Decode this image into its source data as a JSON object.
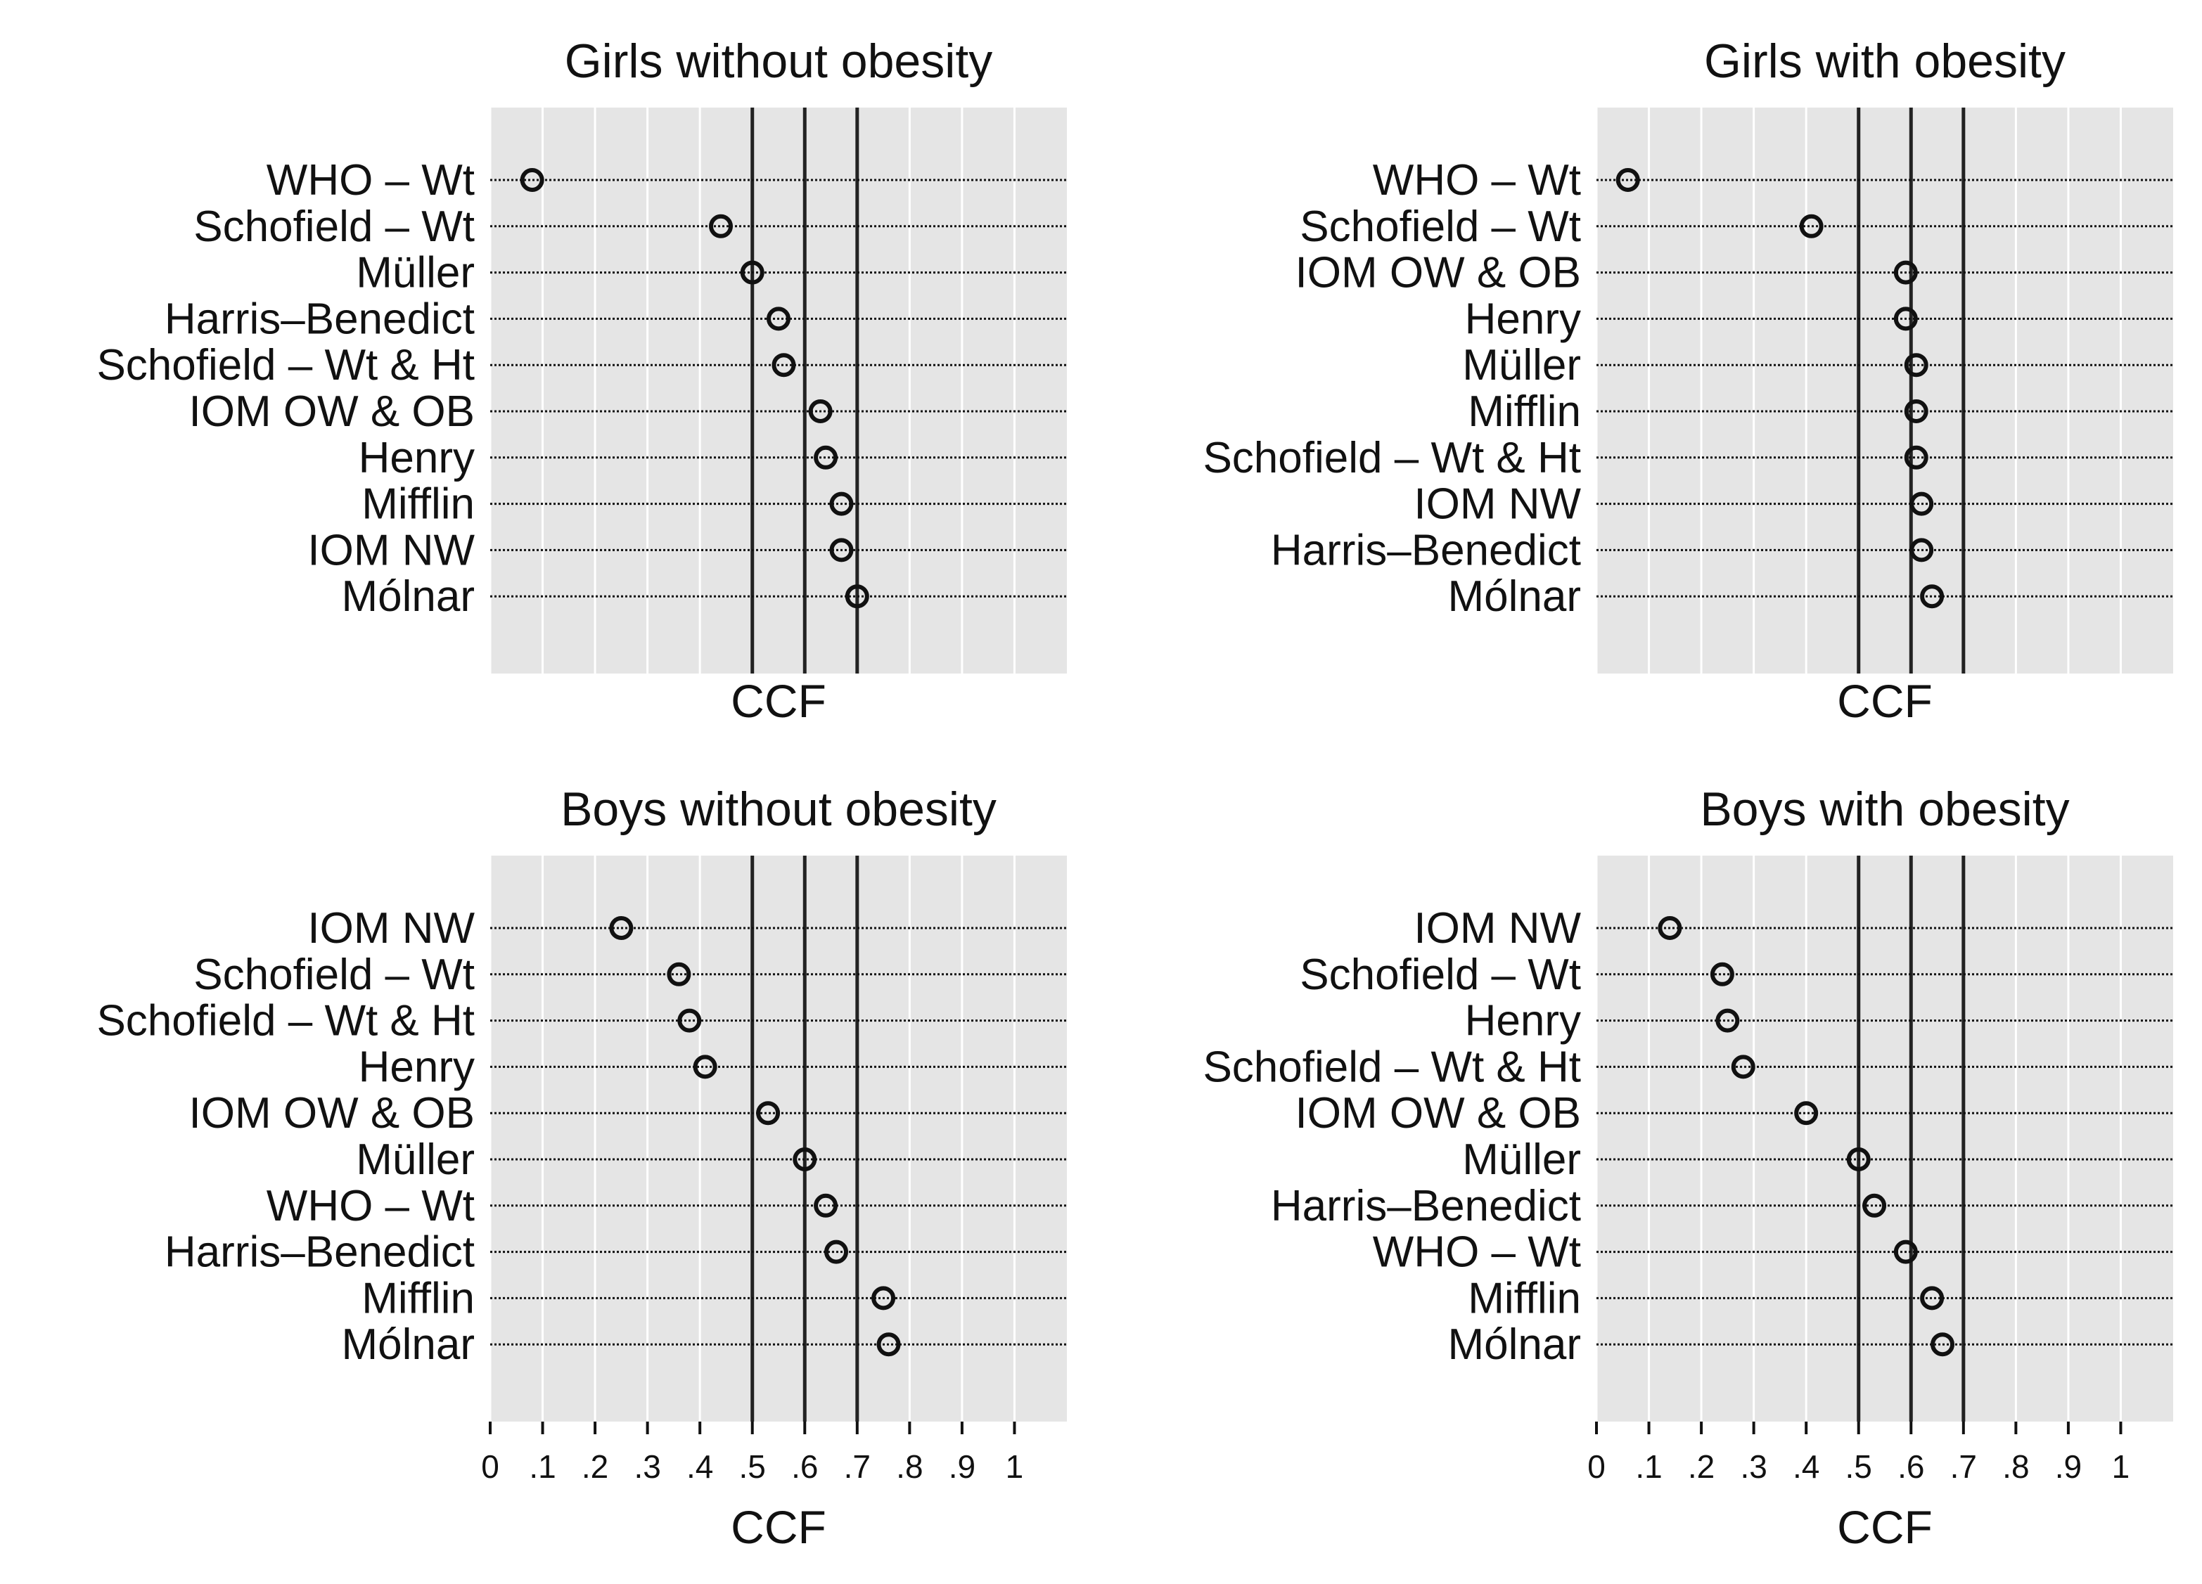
{
  "chart_data": [
    {
      "type": "scatter",
      "title": "Girls without obesity",
      "xlabel": "CCF",
      "xlim": [
        0,
        1.1
      ],
      "show_x_ticks": false,
      "reference_lines": [
        0.5,
        0.6,
        0.7
      ],
      "categories": [
        "WHO – Wt",
        "Schofield – Wt",
        "Müller",
        "Harris–Benedict",
        "Schofield – Wt & Ht",
        "IOM OW & OB",
        "Henry",
        "Mifflin",
        "IOM NW",
        "Mólnar"
      ],
      "values": [
        0.08,
        0.44,
        0.5,
        0.55,
        0.56,
        0.63,
        0.64,
        0.67,
        0.67,
        0.7
      ]
    },
    {
      "type": "scatter",
      "title": "Girls with obesity",
      "xlabel": "CCF",
      "xlim": [
        0,
        1.1
      ],
      "show_x_ticks": false,
      "reference_lines": [
        0.5,
        0.6,
        0.7
      ],
      "categories": [
        "WHO – Wt",
        "Schofield – Wt",
        "IOM OW & OB",
        "Henry",
        "Müller",
        "Mifflin",
        "Schofield – Wt & Ht",
        "IOM NW",
        "Harris–Benedict",
        "Mólnar"
      ],
      "values": [
        0.06,
        0.41,
        0.59,
        0.59,
        0.61,
        0.61,
        0.61,
        0.62,
        0.62,
        0.64
      ]
    },
    {
      "type": "scatter",
      "title": "Boys without obesity",
      "xlabel": "CCF",
      "xlim": [
        0,
        1.1
      ],
      "show_x_ticks": true,
      "reference_lines": [
        0.5,
        0.6,
        0.7
      ],
      "categories": [
        "IOM NW",
        "Schofield – Wt",
        "Schofield – Wt & Ht",
        "Henry",
        "IOM OW & OB",
        "Müller",
        "WHO – Wt",
        "Harris–Benedict",
        "Mifflin",
        "Mólnar"
      ],
      "values": [
        0.25,
        0.36,
        0.38,
        0.41,
        0.53,
        0.6,
        0.64,
        0.66,
        0.75,
        0.76
      ]
    },
    {
      "type": "scatter",
      "title": "Boys with obesity",
      "xlabel": "CCF",
      "xlim": [
        0,
        1.1
      ],
      "show_x_ticks": true,
      "reference_lines": [
        0.5,
        0.6,
        0.7
      ],
      "categories": [
        "IOM NW",
        "Schofield – Wt",
        "Henry",
        "Schofield – Wt & Ht",
        "IOM OW & OB",
        "Müller",
        "Harris–Benedict",
        "WHO – Wt",
        "Mifflin",
        "Mólnar"
      ],
      "values": [
        0.14,
        0.24,
        0.25,
        0.28,
        0.4,
        0.5,
        0.53,
        0.59,
        0.64,
        0.66
      ]
    }
  ],
  "x_ticks": [
    {
      "value": 0,
      "label": "0"
    },
    {
      "value": 0.1,
      "label": ".1"
    },
    {
      "value": 0.2,
      "label": ".2"
    },
    {
      "value": 0.3,
      "label": ".3"
    },
    {
      "value": 0.4,
      "label": ".4"
    },
    {
      "value": 0.5,
      "label": ".5"
    },
    {
      "value": 0.6,
      "label": ".6"
    },
    {
      "value": 0.7,
      "label": ".7"
    },
    {
      "value": 0.8,
      "label": ".8"
    },
    {
      "value": 0.9,
      "label": ".9"
    },
    {
      "value": 1,
      "label": "1"
    }
  ],
  "colors": {
    "panel_background": "#e5e5e5",
    "grid": "#ffffff",
    "reference_line": "#222222",
    "marker": "#111111"
  }
}
